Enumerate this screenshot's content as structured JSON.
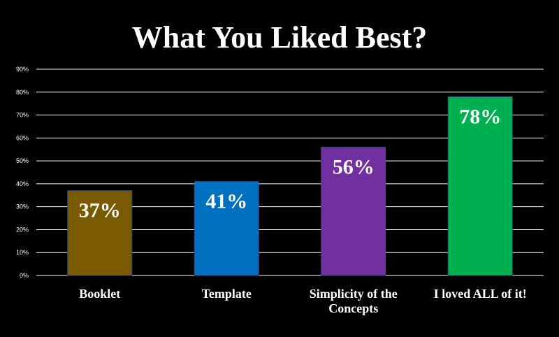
{
  "colors": {
    "background": "#000000",
    "text": "#ffffff",
    "gridline": "#ffffff"
  },
  "chart_data": {
    "type": "bar",
    "title": "What You Liked Best?",
    "xlabel": "",
    "ylabel": "",
    "ylim": [
      0,
      90
    ],
    "y_unit": "%",
    "yticks": [
      0,
      10,
      20,
      30,
      40,
      50,
      60,
      70,
      80,
      90
    ],
    "ytick_labels": [
      "0%",
      "10%",
      "20%",
      "30%",
      "40%",
      "50%",
      "60%",
      "70%",
      "80%",
      "90%"
    ],
    "grid": true,
    "legend": "none",
    "categories": [
      "Booklet",
      "Template",
      "Simplicity of the Concepts",
      "I loved ALL of it!"
    ],
    "category_lines": [
      [
        "Booklet"
      ],
      [
        "Template"
      ],
      [
        "Simplicity of the",
        "Concepts"
      ],
      [
        "I loved ALL of it!"
      ]
    ],
    "values": [
      37,
      41,
      56,
      78
    ],
    "data_labels": [
      "37%",
      "41%",
      "56%",
      "78%"
    ],
    "bar_colors": [
      "#7a5a00",
      "#0070c0",
      "#7030a0",
      "#00b050"
    ]
  }
}
